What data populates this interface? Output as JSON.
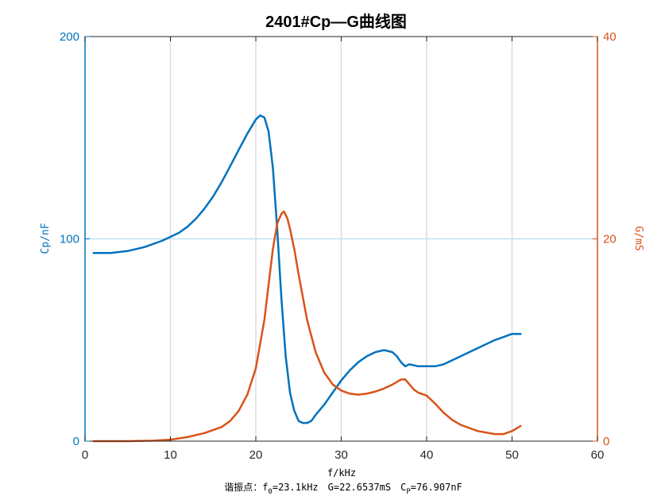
{
  "chart_data": {
    "type": "line",
    "title": "2401#Cp—G曲线图",
    "xlabel": "f/kHz",
    "ylabel_left": "Cp/nF",
    "ylabel_right": "G/mS",
    "xlim": [
      0,
      60
    ],
    "ylim_left": [
      0,
      200
    ],
    "ylim_right": [
      0,
      40
    ],
    "xticks": [
      0,
      10,
      20,
      30,
      40,
      50,
      60
    ],
    "yticks_left": [
      0,
      100,
      200
    ],
    "yticks_right": [
      0,
      20,
      40
    ],
    "grid": true,
    "reference_line_left": 100,
    "colors": {
      "left": "#0072BD",
      "right": "#D95319"
    },
    "series": [
      {
        "axis": "left",
        "color": "#0072BD",
        "x": [
          1,
          2,
          3,
          5,
          7,
          9,
          10,
          11,
          12,
          13,
          14,
          15,
          16,
          17,
          18,
          19,
          20,
          20.5,
          21,
          21.5,
          22,
          22.5,
          23,
          23.5,
          24,
          24.5,
          25,
          25.5,
          26,
          26.5,
          27,
          28,
          29,
          30,
          31,
          32,
          33,
          34,
          35,
          36,
          36.5,
          37,
          37.5,
          38,
          39,
          40,
          41,
          42,
          44,
          46,
          48,
          50,
          51
        ],
        "values": [
          93,
          93,
          93,
          94,
          96,
          99,
          101,
          103,
          106,
          110,
          115,
          121,
          128,
          136,
          144,
          152,
          159,
          161,
          160,
          153,
          135,
          105,
          70,
          42,
          24,
          15,
          10,
          9,
          9,
          10,
          13,
          18,
          24,
          30,
          35,
          39,
          42,
          44,
          45,
          44,
          42,
          39,
          37,
          38,
          37,
          37,
          37,
          38,
          42,
          46,
          50,
          53,
          53
        ]
      },
      {
        "axis": "right",
        "color": "#D95319",
        "x": [
          1,
          5,
          8,
          10,
          12,
          14,
          16,
          17,
          18,
          19,
          20,
          21,
          21.5,
          22,
          22.5,
          23,
          23.3,
          23.7,
          24,
          24.5,
          25,
          26,
          27,
          28,
          29,
          30,
          31,
          32,
          33,
          34,
          35,
          36,
          37,
          37.5,
          38,
          38.5,
          39,
          40,
          41,
          42,
          43,
          44,
          46,
          48,
          49,
          50,
          51
        ],
        "values": [
          0,
          0,
          0.05,
          0.15,
          0.4,
          0.8,
          1.4,
          2.0,
          3.0,
          4.6,
          7.2,
          12,
          15.5,
          19,
          21.5,
          22.5,
          22.7,
          22,
          21,
          19,
          16.5,
          12,
          8.8,
          6.8,
          5.6,
          5.0,
          4.7,
          4.6,
          4.7,
          4.9,
          5.2,
          5.6,
          6.1,
          6.1,
          5.6,
          5.1,
          4.8,
          4.5,
          3.7,
          2.8,
          2.1,
          1.6,
          1.0,
          0.7,
          0.7,
          1.0,
          1.5
        ]
      }
    ],
    "annotation": {
      "prefix": "谐振点：f",
      "f_sub": "0",
      "f_value": "=23.1kHz",
      "g_text": "G=22.6537mS",
      "c_main": "C",
      "c_sub": "P",
      "c_value": "=76.907nF"
    }
  }
}
